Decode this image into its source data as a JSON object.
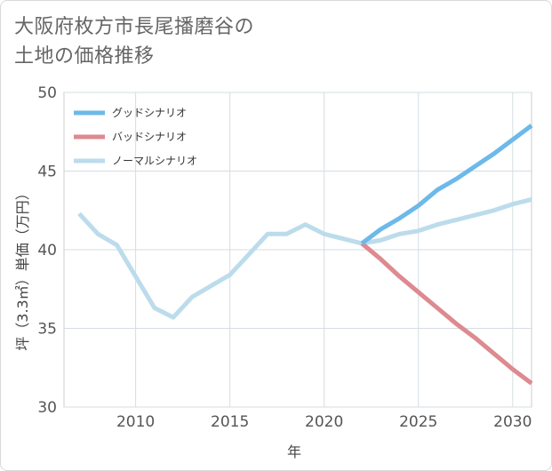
{
  "title_lines": [
    "大阪府枚方市長尾播磨谷の",
    "土地の価格推移"
  ],
  "chart_data": {
    "type": "line",
    "xlabel": "年",
    "ylabel": "坪（3.3㎡）単価（万円）",
    "xlim": [
      2006.2,
      2031
    ],
    "ylim": [
      30,
      50
    ],
    "xticks": [
      2010,
      2015,
      2020,
      2025,
      2030
    ],
    "yticks": [
      30,
      35,
      40,
      45,
      50
    ],
    "grid": true,
    "legend_position": "top-left",
    "series": [
      {
        "name": "グッドシナリオ",
        "color": "#6cb9ea",
        "x": [
          2022,
          2023,
          2024,
          2025,
          2026,
          2027,
          2028,
          2029,
          2030,
          2031
        ],
        "y": [
          40.4,
          41.3,
          42.0,
          42.8,
          43.8,
          44.5,
          45.3,
          46.1,
          47.0,
          47.9
        ]
      },
      {
        "name": "バッドシナリオ",
        "color": "#dd8a90",
        "x": [
          2022,
          2023,
          2024,
          2025,
          2026,
          2027,
          2028,
          2029,
          2030,
          2031
        ],
        "y": [
          40.4,
          39.4,
          38.3,
          37.3,
          36.3,
          35.3,
          34.4,
          33.4,
          32.4,
          31.5
        ]
      },
      {
        "name": "ノーマルシナリオ",
        "color": "#bcdcec",
        "x": [
          2007,
          2008,
          2009,
          2010,
          2011,
          2012,
          2013,
          2014,
          2015,
          2016,
          2017,
          2018,
          2019,
          2020,
          2021,
          2022,
          2023,
          2024,
          2025,
          2026,
          2027,
          2028,
          2029,
          2030,
          2031
        ],
        "y": [
          42.3,
          41.0,
          40.3,
          38.3,
          36.3,
          35.7,
          37.0,
          37.7,
          38.4,
          39.7,
          41.0,
          41.0,
          41.6,
          41.0,
          40.7,
          40.4,
          40.6,
          41.0,
          41.2,
          41.6,
          41.9,
          42.2,
          42.5,
          42.9,
          43.2
        ]
      }
    ]
  }
}
